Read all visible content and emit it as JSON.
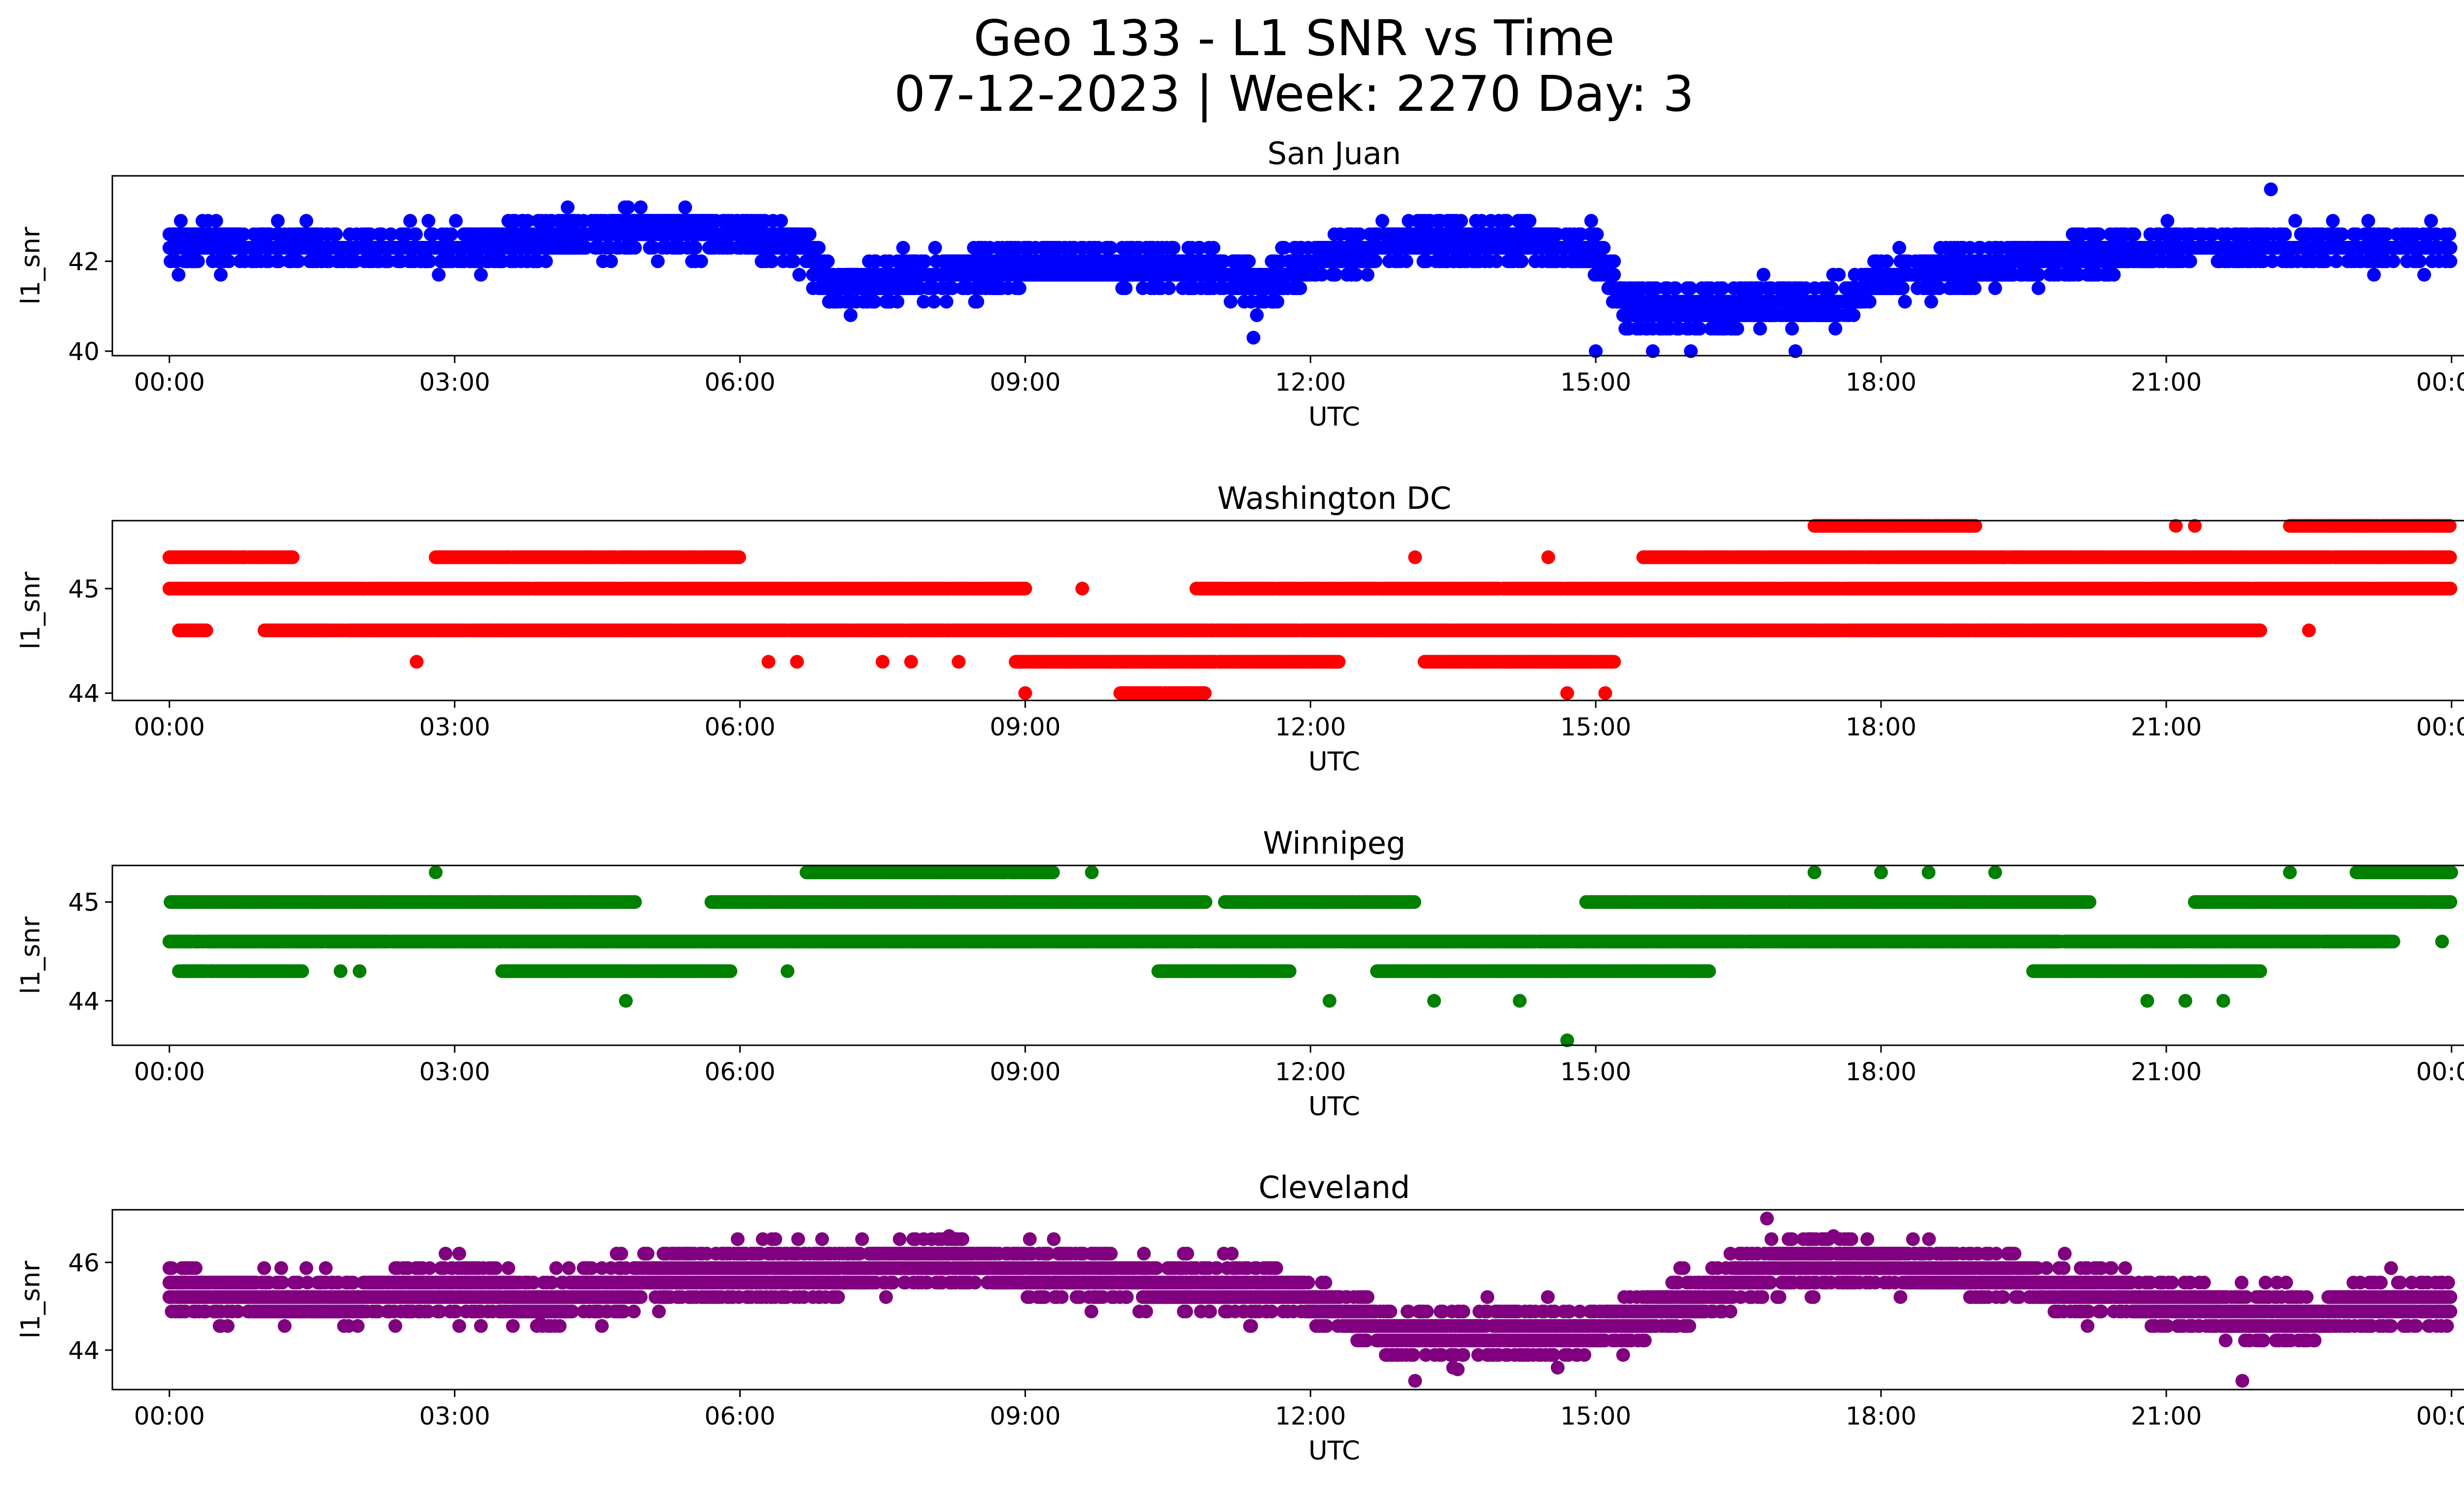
{
  "figure": {
    "title_line1": "Geo 133 - L1 SNR vs Time",
    "title_line2": "07-12-2023 | Week: 2270 Day: 3"
  },
  "chart_data": [
    {
      "type": "scatter",
      "title": "San Juan",
      "xlabel": "UTC",
      "ylabel": "l1_snr",
      "color": "#0000ff",
      "xlim": [
        -0.6,
        25.1
      ],
      "ylim": [
        39.9,
        43.9
      ],
      "x_ticks": [
        "00:00",
        "03:00",
        "06:00",
        "09:00",
        "12:00",
        "15:00",
        "18:00",
        "21:00",
        "00:00"
      ],
      "y_ticks": [
        40,
        42
      ],
      "level_step": 0.3,
      "mean_curve": {
        "x": [
          0,
          1,
          2,
          3,
          4,
          5,
          6,
          6.7,
          7,
          8,
          9,
          10,
          11,
          11.5,
          12,
          13,
          14,
          15,
          15.3,
          16,
          17,
          17.5,
          18,
          19,
          20,
          21,
          22,
          23,
          24
        ],
        "y": [
          42.4,
          42.3,
          42.3,
          42.3,
          42.5,
          42.7,
          42.6,
          42.3,
          41.4,
          41.7,
          41.9,
          41.9,
          41.8,
          41.4,
          42.0,
          42.4,
          42.5,
          42.2,
          41.0,
          40.9,
          41.1,
          41.0,
          41.6,
          41.9,
          42.1,
          42.3,
          42.3,
          42.3,
          42.3
        ]
      },
      "spread": 0.5,
      "outliers": [
        [
          22.1,
          43.6
        ],
        [
          11.4,
          40.3
        ],
        [
          15.0,
          40.0
        ],
        [
          17.1,
          40.0
        ],
        [
          15.6,
          40.0
        ],
        [
          16.0,
          40.0
        ]
      ]
    },
    {
      "type": "scatter",
      "title": "Washington DC",
      "xlabel": "UTC",
      "ylabel": "l1_snr",
      "color": "#ff0000",
      "xlim": [
        -0.6,
        25.1
      ],
      "ylim": [
        43.93,
        45.65
      ],
      "x_ticks": [
        "00:00",
        "03:00",
        "06:00",
        "09:00",
        "12:00",
        "15:00",
        "18:00",
        "21:00",
        "00:00"
      ],
      "y_ticks": [
        44,
        45
      ],
      "levels": [
        {
          "y": 45.0,
          "ranges": [
            [
              0,
              9
            ],
            [
              10.8,
              24
            ]
          ]
        },
        {
          "y": 44.6,
          "ranges": [
            [
              1,
              22
            ],
            [
              0.1,
              0.4
            ]
          ]
        },
        {
          "y": 45.3,
          "ranges": [
            [
              0,
              1.3
            ],
            [
              2.8,
              6
            ],
            [
              15.5,
              24
            ]
          ]
        },
        {
          "y": 44.3,
          "ranges": [
            [
              8.9,
              12.3
            ],
            [
              13.2,
              15.2
            ]
          ]
        },
        {
          "y": 45.6,
          "ranges": [
            [
              17.3,
              19
            ],
            [
              22.3,
              24
            ]
          ]
        },
        {
          "y": 44.0,
          "ranges": [
            [
              10.0,
              10.9
            ]
          ]
        }
      ],
      "outliers": [
        [
          2.6,
          44.3
        ],
        [
          6.3,
          44.3
        ],
        [
          6.6,
          44.3
        ],
        [
          7.5,
          44.3
        ],
        [
          7.8,
          44.3
        ],
        [
          8.3,
          44.3
        ],
        [
          9.0,
          44.0
        ],
        [
          14.7,
          44.0
        ],
        [
          15.1,
          44.0
        ],
        [
          9.6,
          45.0
        ],
        [
          13.1,
          45.3
        ],
        [
          14.5,
          45.3
        ],
        [
          21.1,
          45.6
        ],
        [
          21.3,
          45.6
        ],
        [
          22.5,
          44.6
        ]
      ]
    },
    {
      "type": "scatter",
      "title": "Winnipeg",
      "xlabel": "UTC",
      "ylabel": "l1_snr",
      "color": "#008000",
      "xlim": [
        -0.6,
        25.1
      ],
      "ylim": [
        43.55,
        45.37
      ],
      "x_ticks": [
        "00:00",
        "03:00",
        "06:00",
        "09:00",
        "12:00",
        "15:00",
        "18:00",
        "21:00",
        "00:00"
      ],
      "y_ticks": [
        44,
        45
      ],
      "levels": [
        {
          "y": 44.6,
          "ranges": [
            [
              0,
              23.4
            ]
          ]
        },
        {
          "y": 45.0,
          "ranges": [
            [
              0,
              4.9
            ],
            [
              5.7,
              10.9
            ],
            [
              11.1,
              13.1
            ],
            [
              14.9,
              20.2
            ],
            [
              21.3,
              24
            ]
          ]
        },
        {
          "y": 44.3,
          "ranges": [
            [
              0.1,
              1.4
            ],
            [
              3.5,
              5.9
            ],
            [
              10.4,
              11.8
            ],
            [
              12.7,
              16.2
            ],
            [
              19.6,
              22
            ]
          ]
        },
        {
          "y": 45.3,
          "ranges": [
            [
              6.7,
              9.3
            ],
            [
              23.0,
              24
            ]
          ]
        }
      ],
      "outliers": [
        [
          2.8,
          45.3
        ],
        [
          4.8,
          44.0
        ],
        [
          12.2,
          44.0
        ],
        [
          13.3,
          44.0
        ],
        [
          14.2,
          44.0
        ],
        [
          14.7,
          43.6
        ],
        [
          17.3,
          45.3
        ],
        [
          18.0,
          45.3
        ],
        [
          18.5,
          45.3
        ],
        [
          19.2,
          45.3
        ],
        [
          22.3,
          45.3
        ],
        [
          20.8,
          44.0
        ],
        [
          21.2,
          44.0
        ],
        [
          21.6,
          44.0
        ],
        [
          23.9,
          44.6
        ],
        [
          1.8,
          44.3
        ],
        [
          2.0,
          44.3
        ],
        [
          6.5,
          44.3
        ],
        [
          9.7,
          45.3
        ]
      ]
    },
    {
      "type": "scatter",
      "title": "Cleveland",
      "xlabel": "UTC",
      "ylabel": "l1_snr",
      "color": "#800080",
      "xlim": [
        -0.6,
        25.1
      ],
      "ylim": [
        43.1,
        47.2
      ],
      "x_ticks": [
        "00:00",
        "03:00",
        "06:00",
        "09:00",
        "12:00",
        "15:00",
        "18:00",
        "21:00",
        "00:00"
      ],
      "y_ticks": [
        44,
        46
      ],
      "level_step": 0.33,
      "mean_curve": {
        "x": [
          0,
          1,
          2,
          3,
          4,
          5,
          6,
          7,
          8,
          9,
          10,
          11,
          12,
          12.5,
          13,
          14,
          15,
          16,
          16.5,
          17,
          18,
          19,
          20,
          21,
          21.8,
          22.3,
          23,
          24
        ],
        "y": [
          45.3,
          45.2,
          45.2,
          45.4,
          45.1,
          45.6,
          45.8,
          45.8,
          46.0,
          45.8,
          45.6,
          45.4,
          45.2,
          44.7,
          44.3,
          44.4,
          44.5,
          45.1,
          45.6,
          46.0,
          45.9,
          45.8,
          45.4,
          45.1,
          44.8,
          44.7,
          45.0,
          45.1
        ]
      },
      "spread": 0.6,
      "outliers": [
        [
          16.8,
          47.0
        ],
        [
          13.1,
          43.3
        ],
        [
          21.8,
          43.3
        ],
        [
          3.9,
          44.6
        ],
        [
          13.5,
          43.6
        ],
        [
          14.6,
          43.6
        ],
        [
          8.2,
          46.6
        ],
        [
          17.5,
          46.6
        ]
      ]
    }
  ]
}
